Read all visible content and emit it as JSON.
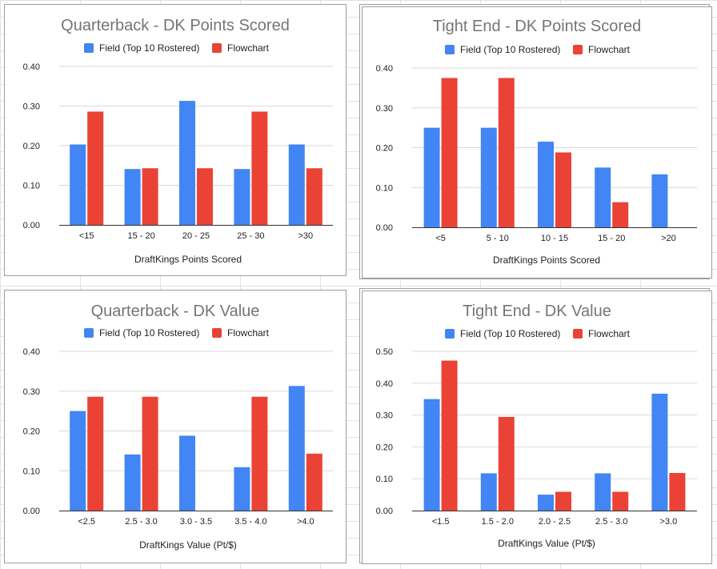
{
  "colors": {
    "field": "#4285f4",
    "flowchart": "#ea4335",
    "grid": "#d9d9d9",
    "axis": "#333333"
  },
  "chart_data": [
    {
      "type": "bar",
      "title": "Quarterback - DK Points Scored",
      "xlabel": "DraftKings Points Scored",
      "ylabel": "",
      "categories": [
        "<15",
        "15 - 20",
        "20 - 25",
        "25 - 30",
        ">30"
      ],
      "series": [
        {
          "name": "Field (Top 10 Rostered)",
          "values": [
            0.203,
            0.141,
            0.313,
            0.141,
            0.203
          ]
        },
        {
          "name": "Flowchart",
          "values": [
            0.286,
            0.143,
            0.143,
            0.286,
            0.143
          ]
        }
      ],
      "ylim": [
        0,
        0.4
      ],
      "yticks": [
        "0.00",
        "0.10",
        "0.20",
        "0.30",
        "0.40"
      ],
      "grid": true,
      "legend": "top"
    },
    {
      "type": "bar",
      "title": "Tight End - DK Points Scored",
      "xlabel": "DraftKings Points Scored",
      "ylabel": "",
      "categories": [
        "<5",
        "5 - 10",
        "10 - 15",
        "15 - 20",
        ">20"
      ],
      "series": [
        {
          "name": "Field (Top 10 Rostered)",
          "values": [
            0.25,
            0.25,
            0.215,
            0.15,
            0.133
          ]
        },
        {
          "name": "Flowchart",
          "values": [
            0.375,
            0.375,
            0.188,
            0.063,
            0
          ]
        }
      ],
      "ylim": [
        0,
        0.4
      ],
      "yticks": [
        "0.00",
        "0.10",
        "0.20",
        "0.30",
        "0.40"
      ],
      "grid": true,
      "legend": "top"
    },
    {
      "type": "bar",
      "title": "Quarterback - DK Value",
      "xlabel": "DraftKings Value (Pt/$)",
      "ylabel": "",
      "categories": [
        "<2.5",
        "2.5 - 3.0",
        "3.0 - 3.5",
        "3.5 - 4.0",
        ">4.0"
      ],
      "series": [
        {
          "name": "Field (Top 10 Rostered)",
          "values": [
            0.25,
            0.141,
            0.188,
            0.109,
            0.313
          ]
        },
        {
          "name": "Flowchart",
          "values": [
            0.286,
            0.286,
            0,
            0.286,
            0.143
          ]
        }
      ],
      "ylim": [
        0,
        0.4
      ],
      "yticks": [
        "0.00",
        "0.10",
        "0.20",
        "0.30",
        "0.40"
      ],
      "grid": true,
      "legend": "top"
    },
    {
      "type": "bar",
      "title": "Tight End - DK Value",
      "xlabel": "DraftKings Value (Pt/$)",
      "ylabel": "",
      "categories": [
        "<1.5",
        "1.5 - 2.0",
        "2.0 - 2.5",
        "2.5 - 3.0",
        ">3.0"
      ],
      "series": [
        {
          "name": "Field (Top 10 Rostered)",
          "values": [
            0.35,
            0.117,
            0.05,
            0.117,
            0.367
          ]
        },
        {
          "name": "Flowchart",
          "values": [
            0.471,
            0.294,
            0.059,
            0.059,
            0.118
          ]
        }
      ],
      "ylim": [
        0,
        0.5
      ],
      "yticks": [
        "0.00",
        "0.10",
        "0.20",
        "0.30",
        "0.40",
        "0.50"
      ],
      "grid": true,
      "legend": "top"
    }
  ]
}
